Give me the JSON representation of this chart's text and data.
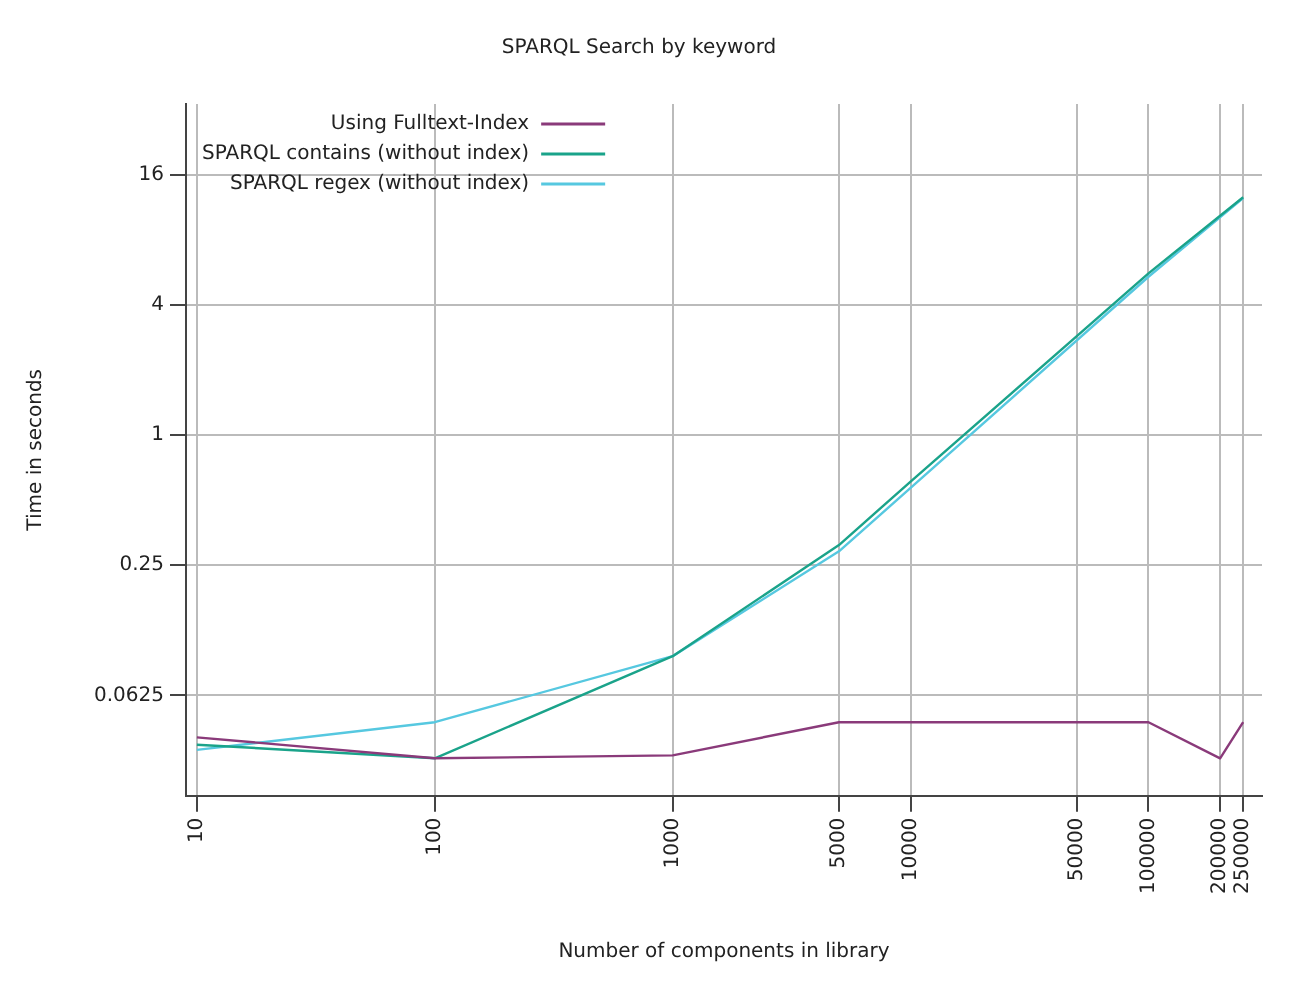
{
  "chart_data": {
    "type": "line",
    "title": "SPARQL Search by keyword",
    "xlabel": "Number of components in library",
    "ylabel": "Time in seconds",
    "log": "xy",
    "grid": true,
    "legend": "top left",
    "marker": "none",
    "line_style": "solid",
    "xlim": [
      9,
      300000
    ],
    "xticks": [
      10,
      100,
      1000,
      5000,
      10000,
      50000,
      100000,
      200000,
      250000
    ],
    "ylim": [
      0.0215,
      34
    ],
    "yticks": [
      0.0625,
      0.25,
      1,
      4,
      16
    ],
    "series": [
      {
        "name": "Using Fulltext-Index",
        "color": "#8a3a7a",
        "x": [
          10,
          100,
          1000,
          5000,
          100000,
          200000,
          250000
        ],
        "values": [
          0.04,
          0.032,
          0.033,
          0.047,
          0.047,
          0.032,
          0.047
        ]
      },
      {
        "name": "SPARQL contains (without index)",
        "color": "#1aa38a",
        "x": [
          10,
          100,
          1000,
          5000,
          10000,
          100000,
          250000
        ],
        "values": [
          0.037,
          0.032,
          0.095,
          0.31,
          0.61,
          5.6,
          12.6
        ]
      },
      {
        "name": "SPARQL regex (without index)",
        "color": "#56c8e0",
        "x": [
          10,
          100,
          1000,
          5000,
          10000,
          100000,
          250000
        ],
        "values": [
          0.035,
          0.047,
          0.095,
          0.29,
          0.57,
          5.4,
          12.5
        ]
      }
    ]
  }
}
